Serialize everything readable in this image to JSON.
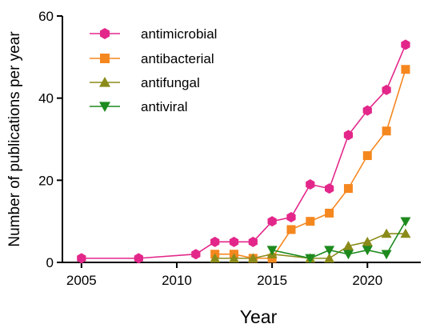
{
  "chart_data": {
    "type": "line",
    "title": "",
    "xlabel": "Year",
    "ylabel": "Number of publications per year",
    "xlim": [
      2004,
      2022.8
    ],
    "ylim": [
      0,
      60
    ],
    "xticks": [
      2005,
      2010,
      2015,
      2020
    ],
    "yticks": [
      0,
      20,
      40,
      60
    ],
    "grid": false,
    "legend_position": "top-left",
    "series": [
      {
        "name": "antimicrobial",
        "color": "#e3278a",
        "marker": "hexagon",
        "x": [
          2005,
          2008,
          2011,
          2012,
          2013,
          2014,
          2015,
          2016,
          2017,
          2018,
          2019,
          2020,
          2021,
          2022
        ],
        "values": [
          1,
          1,
          2,
          5,
          5,
          5,
          10,
          11,
          19,
          18,
          31,
          37,
          42,
          53
        ]
      },
      {
        "name": "antibacterial",
        "color": "#f5871f",
        "marker": "square",
        "x": [
          2012,
          2013,
          2014,
          2015,
          2016,
          2017,
          2018,
          2019,
          2020,
          2021,
          2022
        ],
        "values": [
          2,
          2,
          1,
          1,
          8,
          10,
          12,
          18,
          26,
          32,
          47
        ]
      },
      {
        "name": "antifungal",
        "color": "#8b8b1a",
        "marker": "triangle-up",
        "x": [
          2012,
          2013,
          2014,
          2015,
          2017,
          2018,
          2019,
          2020,
          2021,
          2022
        ],
        "values": [
          1,
          1,
          1,
          2,
          1,
          1,
          4,
          5,
          7,
          7
        ]
      },
      {
        "name": "antiviral",
        "color": "#1e8a1e",
        "marker": "triangle-down",
        "x": [
          2015,
          2017,
          2018,
          2019,
          2020,
          2021,
          2022
        ],
        "values": [
          3,
          1,
          3,
          2,
          3,
          2,
          10
        ]
      }
    ]
  }
}
